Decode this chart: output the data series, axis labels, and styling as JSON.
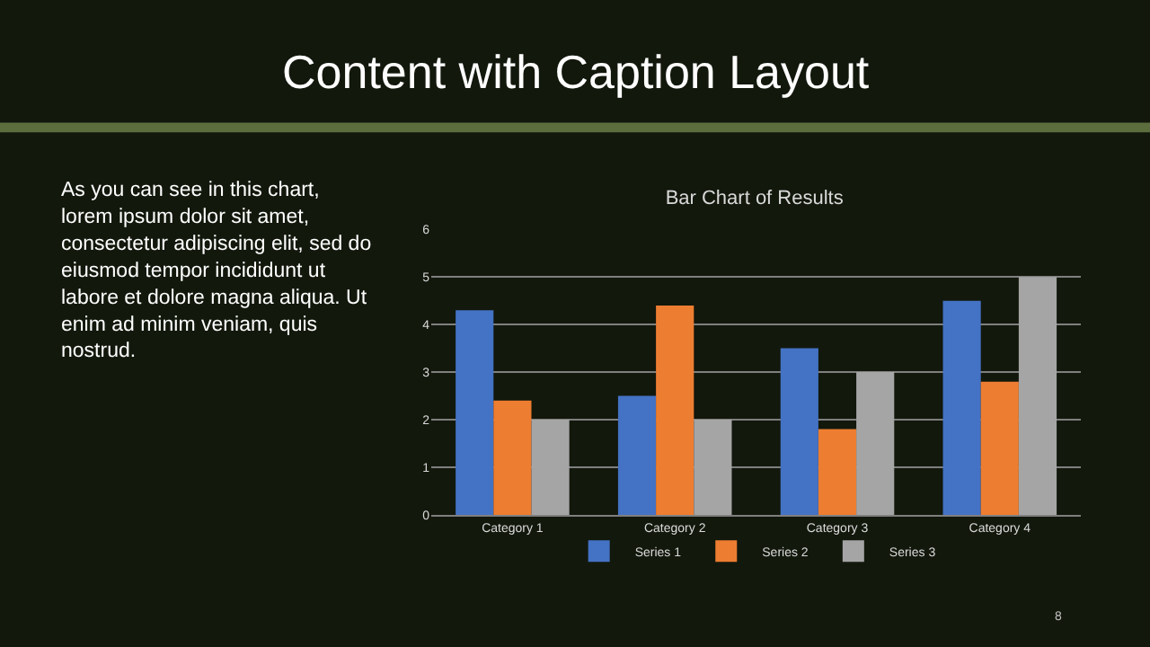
{
  "chart_data": {
    "type": "bar",
    "title": "Bar Chart of Results",
    "categories": [
      "Category 1",
      "Category 2",
      "Category 3",
      "Category 4"
    ],
    "series": [
      {
        "name": "Series 1",
        "color": "#4472c4",
        "values": [
          4.3,
          2.5,
          3.5,
          4.5
        ]
      },
      {
        "name": "Series 2",
        "color": "#ed7d31",
        "values": [
          2.4,
          4.4,
          1.8,
          2.8
        ]
      },
      {
        "name": "Series 3",
        "color": "#a5a5a5",
        "values": [
          2,
          2,
          3,
          5
        ]
      }
    ],
    "ylim": [
      0,
      6
    ],
    "yticks": [
      0,
      1,
      2,
      3,
      4,
      5,
      6
    ],
    "grid": "y",
    "legend": "bottom",
    "annotations": [
      "Content with Caption Layout",
      "As you can see in this chart,\nlorem ipsum dolor sit amet,\nconsectetur adipiscing elit, sed do\neiusmod tempor incididunt ut\nlabore et dolore magna aliqua. Ut\nenim ad minim veniam, quis\nnostrud.",
      "8"
    ]
  }
}
